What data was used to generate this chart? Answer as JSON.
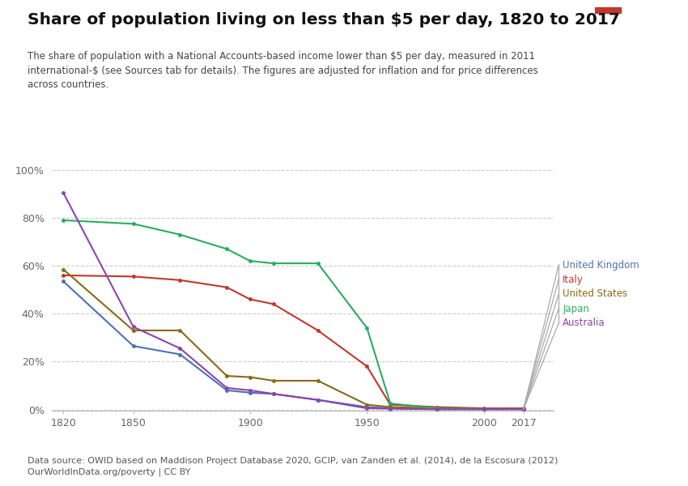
{
  "title": "Share of population living on less than $5 per day, 1820 to 2017",
  "subtitle": "The share of population with a National Accounts-based income lower than $5 per day, measured in 2011\ninternational-$ (see Sources tab for details). The figures are adjusted for inflation and for price differences\nacross countries.",
  "footer": "Data source: OWID based on Maddison Project Database 2020, GCIP, van Zanden et al. (2014), de la Escosura (2012)\nOurWorldInData.org/poverty | CC BY",
  "series": {
    "United Kingdom": {
      "color": "#4C72B0",
      "data": [
        [
          1820,
          0.535
        ],
        [
          1850,
          0.265
        ],
        [
          1870,
          0.23
        ],
        [
          1890,
          0.08
        ],
        [
          1900,
          0.07
        ],
        [
          1910,
          0.065
        ],
        [
          1929,
          0.04
        ],
        [
          1950,
          0.01
        ],
        [
          1960,
          0.005
        ],
        [
          1980,
          0.001
        ],
        [
          2000,
          0.001
        ],
        [
          2017,
          0.001
        ]
      ]
    },
    "Italy": {
      "color": "#c0392b",
      "data": [
        [
          1820,
          0.56
        ],
        [
          1850,
          0.555
        ],
        [
          1870,
          0.54
        ],
        [
          1890,
          0.51
        ],
        [
          1900,
          0.46
        ],
        [
          1910,
          0.44
        ],
        [
          1929,
          0.33
        ],
        [
          1950,
          0.18
        ],
        [
          1960,
          0.02
        ],
        [
          1980,
          0.01
        ],
        [
          2000,
          0.005
        ],
        [
          2017,
          0.005
        ]
      ]
    },
    "United States": {
      "color": "#8B6914",
      "data": [
        [
          1820,
          0.585
        ],
        [
          1850,
          0.33
        ],
        [
          1870,
          0.33
        ],
        [
          1890,
          0.14
        ],
        [
          1900,
          0.135
        ],
        [
          1910,
          0.12
        ],
        [
          1929,
          0.12
        ],
        [
          1950,
          0.02
        ],
        [
          1960,
          0.01
        ],
        [
          1980,
          0.005
        ],
        [
          2000,
          0.002
        ],
        [
          2017,
          0.002
        ]
      ]
    },
    "Japan": {
      "color": "#27ae60",
      "data": [
        [
          1820,
          0.79
        ],
        [
          1850,
          0.775
        ],
        [
          1870,
          0.73
        ],
        [
          1890,
          0.67
        ],
        [
          1900,
          0.62
        ],
        [
          1910,
          0.61
        ],
        [
          1929,
          0.61
        ],
        [
          1950,
          0.34
        ],
        [
          1960,
          0.025
        ],
        [
          1980,
          0.005
        ],
        [
          2000,
          0.002
        ],
        [
          2017,
          0.002
        ]
      ]
    },
    "Australia": {
      "color": "#8e44ad",
      "data": [
        [
          1820,
          0.905
        ],
        [
          1850,
          0.345
        ],
        [
          1870,
          0.255
        ],
        [
          1890,
          0.09
        ],
        [
          1900,
          0.08
        ],
        [
          1910,
          0.065
        ],
        [
          1929,
          0.04
        ],
        [
          1950,
          0.005
        ],
        [
          1960,
          0.003
        ],
        [
          1980,
          0.001
        ],
        [
          2000,
          0.001
        ],
        [
          2017,
          0.001
        ]
      ]
    }
  },
  "xlim": [
    1815,
    2030
  ],
  "ylim": [
    -0.005,
    1.05
  ],
  "xticks": [
    1820,
    1850,
    1900,
    1950,
    2000,
    2017
  ],
  "yticks": [
    0.0,
    0.2,
    0.4,
    0.6,
    0.8,
    1.0
  ],
  "ytick_labels": [
    "0%",
    "20%",
    "40%",
    "60%",
    "80%",
    "100%"
  ],
  "background_color": "#ffffff",
  "grid_color": "#cccccc",
  "owid_box_bg": "#1a3a5c",
  "owid_box_red": "#c0392b",
  "legend_order": [
    "United Kingdom",
    "Italy",
    "United States",
    "Japan",
    "Australia"
  ]
}
